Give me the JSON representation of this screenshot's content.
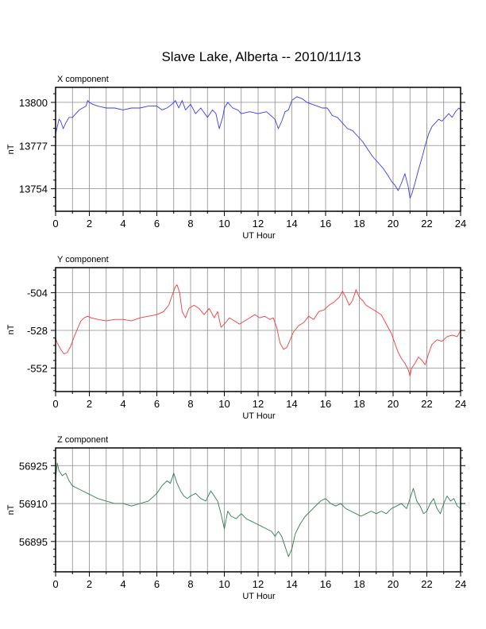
{
  "title": "Slave Lake, Alberta -- 2010/11/13",
  "chart_data": [
    {
      "type": "line",
      "title": "X component",
      "xlabel": "UT Hour",
      "ylabel": "nT",
      "xlim": [
        0,
        24
      ],
      "ylim": [
        13742,
        13808
      ],
      "xticks": [
        "0",
        "2",
        "4",
        "6",
        "8",
        "10",
        "12",
        "14",
        "16",
        "18",
        "20",
        "22",
        "24"
      ],
      "yticks": [
        13754,
        13777,
        13800
      ],
      "grid": true,
      "color": "#3a3af0",
      "series": [
        {
          "x": [
            0,
            0.1,
            0.2,
            0.3,
            0.45,
            0.6,
            0.8,
            1.0,
            1.2,
            1.4,
            1.6,
            1.8,
            1.9,
            2.0,
            2.2,
            2.5,
            3.0,
            3.5,
            4.0,
            4.5,
            5.0,
            5.5,
            6.0,
            6.3,
            6.6,
            6.9,
            7.1,
            7.3,
            7.5,
            7.7,
            8.0,
            8.3,
            8.6,
            9.0,
            9.3,
            9.5,
            9.7,
            9.9,
            10.0,
            10.2,
            10.5,
            10.8,
            11.0,
            11.5,
            12.0,
            12.5,
            13.0,
            13.2,
            13.4,
            13.6,
            13.8,
            14.0,
            14.3,
            14.6,
            14.9,
            15.2,
            15.5,
            15.8,
            16.1,
            16.4,
            16.7,
            17.0,
            17.3,
            17.6,
            17.9,
            18.2,
            18.5,
            18.8,
            19.1,
            19.4,
            19.7,
            19.9,
            20.1,
            20.3,
            20.5,
            20.7,
            20.9,
            21.0,
            21.1,
            21.3,
            21.5,
            21.7,
            21.9,
            22.1,
            22.3,
            22.5,
            22.7,
            22.9,
            23.1,
            23.3,
            23.5,
            23.7,
            23.9,
            24.0
          ],
          "y": [
            13783,
            13787,
            13791,
            13790,
            13786,
            13789,
            13792,
            13792,
            13794,
            13796,
            13797,
            13798,
            13801,
            13800,
            13799,
            13798,
            13797,
            13797,
            13796,
            13797,
            13797,
            13798,
            13798,
            13796,
            13797,
            13799,
            13801,
            13797,
            13801,
            13796,
            13799,
            13794,
            13797,
            13792,
            13796,
            13794,
            13786,
            13792,
            13797,
            13800,
            13797,
            13796,
            13794,
            13795,
            13794,
            13795,
            13791,
            13786,
            13790,
            13795,
            13796,
            13801,
            13803,
            13802,
            13800,
            13799,
            13798,
            13797,
            13797,
            13793,
            13792,
            13789,
            13786,
            13785,
            13782,
            13779,
            13775,
            13771,
            13768,
            13765,
            13761,
            13758,
            13756,
            13753,
            13757,
            13762,
            13755,
            13749,
            13751,
            13757,
            13764,
            13770,
            13777,
            13783,
            13787,
            13789,
            13791,
            13790,
            13792,
            13794,
            13792,
            13795,
            13797,
            13796
          ]
        }
      ]
    },
    {
      "type": "line",
      "title": "Y component",
      "xlabel": "UT Hour",
      "ylabel": "nT",
      "xlim": [
        0,
        24
      ],
      "ylim": [
        -567,
        -488
      ],
      "xticks": [
        "0",
        "2",
        "4",
        "6",
        "8",
        "10",
        "12",
        "14",
        "16",
        "18",
        "20",
        "22",
        "24"
      ],
      "yticks": [
        -504,
        -528,
        -552
      ],
      "grid": true,
      "color": "#f03c3c",
      "series": [
        {
          "x": [
            0,
            0.1,
            0.3,
            0.5,
            0.7,
            0.9,
            1.1,
            1.3,
            1.5,
            1.7,
            1.9,
            2.1,
            2.5,
            3.0,
            3.5,
            4.0,
            4.5,
            5.0,
            5.5,
            6.0,
            6.4,
            6.7,
            6.9,
            7.1,
            7.2,
            7.35,
            7.5,
            7.7,
            7.9,
            8.2,
            8.5,
            8.8,
            9.1,
            9.4,
            9.6,
            9.8,
            10.0,
            10.3,
            10.6,
            10.9,
            11.2,
            11.5,
            11.8,
            12.1,
            12.4,
            12.7,
            12.9,
            13.1,
            13.3,
            13.5,
            13.7,
            13.9,
            14.1,
            14.4,
            14.7,
            15.0,
            15.3,
            15.6,
            15.9,
            16.2,
            16.5,
            16.8,
            17.0,
            17.2,
            17.4,
            17.6,
            17.8,
            18.0,
            18.2,
            18.4,
            18.7,
            19.0,
            19.3,
            19.6,
            19.9,
            20.1,
            20.3,
            20.5,
            20.7,
            20.9,
            21.0,
            21.1,
            21.3,
            21.5,
            21.7,
            21.9,
            22.1,
            22.3,
            22.6,
            22.9,
            23.2,
            23.5,
            23.8,
            24.0
          ],
          "y": [
            -533,
            -536,
            -540,
            -543,
            -542,
            -538,
            -532,
            -527,
            -522,
            -520,
            -519,
            -520,
            -521,
            -522,
            -521,
            -521,
            -522,
            -520,
            -519,
            -518,
            -516,
            -512,
            -506,
            -500,
            -499,
            -504,
            -516,
            -520,
            -514,
            -512,
            -514,
            -518,
            -514,
            -520,
            -516,
            -526,
            -524,
            -520,
            -522,
            -524,
            -522,
            -520,
            -518,
            -520,
            -519,
            -521,
            -520,
            -526,
            -536,
            -540,
            -539,
            -534,
            -529,
            -525,
            -523,
            -519,
            -521,
            -516,
            -515,
            -512,
            -510,
            -507,
            -503,
            -507,
            -512,
            -509,
            -502,
            -507,
            -509,
            -512,
            -514,
            -516,
            -518,
            -524,
            -530,
            -536,
            -542,
            -546,
            -549,
            -553,
            -557,
            -552,
            -549,
            -545,
            -547,
            -550,
            -543,
            -537,
            -534,
            -535,
            -532,
            -531,
            -532,
            -528
          ]
        }
      ]
    },
    {
      "type": "line",
      "title": "Z component",
      "xlabel": "UT Hour",
      "ylabel": "nT",
      "xlim": [
        0,
        24
      ],
      "ylim": [
        56883,
        56932
      ],
      "xticks": [
        "0",
        "2",
        "4",
        "6",
        "8",
        "10",
        "12",
        "14",
        "16",
        "18",
        "20",
        "22",
        "24"
      ],
      "yticks": [
        56895,
        56910,
        56925
      ],
      "grid": true,
      "color": "#2e7d4f",
      "series": [
        {
          "x": [
            0,
            0.1,
            0.2,
            0.4,
            0.6,
            0.8,
            1.0,
            1.3,
            1.6,
            1.9,
            2.2,
            2.5,
            3.0,
            3.5,
            4.0,
            4.5,
            5.0,
            5.5,
            6.0,
            6.3,
            6.6,
            6.8,
            7.0,
            7.2,
            7.4,
            7.6,
            7.8,
            8.0,
            8.3,
            8.6,
            8.9,
            9.2,
            9.4,
            9.6,
            9.8,
            10.0,
            10.2,
            10.4,
            10.7,
            11.0,
            11.3,
            11.6,
            11.9,
            12.2,
            12.5,
            12.8,
            13.0,
            13.2,
            13.4,
            13.6,
            13.8,
            14.0,
            14.2,
            14.5,
            14.8,
            15.1,
            15.4,
            15.7,
            16.0,
            16.3,
            16.6,
            16.9,
            17.2,
            17.5,
            17.8,
            18.1,
            18.4,
            18.7,
            19.0,
            19.3,
            19.6,
            19.9,
            20.2,
            20.5,
            20.8,
            21.0,
            21.2,
            21.4,
            21.6,
            21.8,
            22.0,
            22.2,
            22.4,
            22.6,
            22.8,
            23.0,
            23.2,
            23.4,
            23.6,
            23.8,
            24.0
          ],
          "y": [
            56920,
            56926,
            56923,
            56921,
            56922,
            56919,
            56917,
            56916,
            56915,
            56914,
            56913,
            56912,
            56911,
            56910,
            56910,
            56909,
            56910,
            56911,
            56914,
            56917,
            56919,
            56918,
            56922,
            56918,
            56915,
            56913,
            56912,
            56913,
            56914,
            56912,
            56911,
            56915,
            56913,
            56911,
            56906,
            56900,
            56907,
            56905,
            56904,
            56906,
            56904,
            56903,
            56902,
            56901,
            56900,
            56899,
            56897,
            56899,
            56897,
            56893,
            56889,
            56892,
            56898,
            56902,
            56905,
            56907,
            56909,
            56911,
            56912,
            56910,
            56909,
            56910,
            56908,
            56907,
            56906,
            56905,
            56906,
            56907,
            56906,
            56907,
            56906,
            56908,
            56909,
            56910,
            56908,
            56912,
            56916,
            56911,
            56909,
            56906,
            56907,
            56910,
            56912,
            56908,
            56906,
            56910,
            56913,
            56911,
            56912,
            56909,
            56908
          ]
        }
      ]
    }
  ]
}
